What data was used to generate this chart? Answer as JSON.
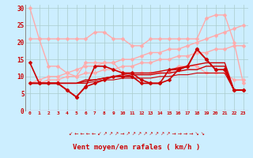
{
  "xlabel": "Vent moyen/en rafales ( km/h )",
  "bg_color": "#cceeff",
  "grid_color": "#aacccc",
  "x": [
    0,
    1,
    2,
    3,
    4,
    5,
    6,
    7,
    8,
    9,
    10,
    11,
    12,
    13,
    14,
    15,
    16,
    17,
    18,
    19,
    20,
    21,
    22,
    23
  ],
  "lines": [
    {
      "y": [
        30,
        21,
        21,
        21,
        21,
        21,
        21,
        23,
        23,
        21,
        21,
        19,
        19,
        21,
        21,
        21,
        21,
        21,
        21,
        27,
        28,
        28,
        20,
        8
      ],
      "color": "#ffaaaa",
      "lw": 1.0,
      "marker": "D",
      "ms": 2.5
    },
    {
      "y": [
        21,
        21,
        13,
        13,
        11,
        10,
        14,
        14,
        14,
        14,
        11,
        11,
        11,
        11,
        11,
        11,
        13,
        13,
        13,
        11,
        11,
        11,
        9,
        9
      ],
      "color": "#ffaaaa",
      "lw": 1.0,
      "marker": "D",
      "ms": 2.5
    },
    {
      "y": [
        8,
        9,
        10,
        10,
        11,
        12,
        13,
        13,
        14,
        14,
        15,
        15,
        16,
        17,
        17,
        18,
        18,
        19,
        20,
        21,
        22,
        23,
        24,
        25
      ],
      "color": "#ffaaaa",
      "lw": 1.0,
      "marker": "D",
      "ms": 2.5
    },
    {
      "y": [
        8,
        8,
        9,
        9,
        10,
        10,
        11,
        11,
        12,
        12,
        13,
        13,
        14,
        14,
        15,
        15,
        16,
        16,
        17,
        17,
        18,
        18,
        19,
        19
      ],
      "color": "#ffaaaa",
      "lw": 1.0,
      "marker": "D",
      "ms": 2.5
    },
    {
      "y": [
        8,
        8,
        8,
        8,
        6,
        4,
        7,
        8,
        9,
        10,
        10,
        10,
        8,
        8,
        8,
        12,
        12,
        13,
        18,
        15,
        12,
        12,
        6,
        6
      ],
      "color": "#cc0000",
      "lw": 1.2,
      "marker": "D",
      "ms": 2.5
    },
    {
      "y": [
        14,
        8,
        8,
        8,
        6,
        4,
        7,
        13,
        13,
        12,
        11,
        11,
        9,
        8,
        8,
        9,
        12,
        13,
        18,
        15,
        12,
        12,
        6,
        6
      ],
      "color": "#cc0000",
      "lw": 1.2,
      "marker": "D",
      "ms": 2.5
    },
    {
      "y": [
        8,
        8,
        8,
        8,
        8,
        8,
        8.5,
        9,
        9.5,
        10,
        10.5,
        11,
        11,
        11,
        11.5,
        12,
        12.5,
        13,
        13.5,
        14,
        14,
        14,
        6,
        6
      ],
      "color": "#cc0000",
      "lw": 1.0,
      "marker": null,
      "ms": 0
    },
    {
      "y": [
        8,
        8,
        8,
        8,
        8,
        8,
        9,
        9,
        9.5,
        10,
        10,
        10.5,
        10.5,
        10.5,
        11,
        11,
        11.5,
        12,
        12,
        13,
        13,
        13,
        6,
        6
      ],
      "color": "#cc0000",
      "lw": 1.0,
      "marker": null,
      "ms": 0
    },
    {
      "y": [
        8,
        8,
        8,
        8,
        8,
        8,
        8,
        8.5,
        9,
        9,
        9.5,
        9.5,
        9.5,
        9.5,
        10,
        10,
        10.5,
        10.5,
        11,
        11,
        11,
        11,
        6,
        6
      ],
      "color": "#cc0000",
      "lw": 0.8,
      "marker": null,
      "ms": 0
    }
  ],
  "ylim": [
    0,
    31
  ],
  "yticks": [
    0,
    5,
    10,
    15,
    20,
    25,
    30
  ],
  "xticks": [
    0,
    1,
    2,
    3,
    4,
    5,
    6,
    7,
    8,
    9,
    10,
    11,
    12,
    13,
    14,
    15,
    16,
    17,
    18,
    19,
    20,
    21,
    22,
    23
  ],
  "arrows": [
    "↙",
    "←",
    "←",
    "←",
    "←",
    "↙",
    "↗",
    "↗",
    "↗",
    "→",
    "↗",
    "↗",
    "↗",
    "↗",
    "↗",
    "↗",
    "↗",
    "↗",
    "→",
    "→",
    "→",
    "→",
    "↘",
    "↘"
  ]
}
